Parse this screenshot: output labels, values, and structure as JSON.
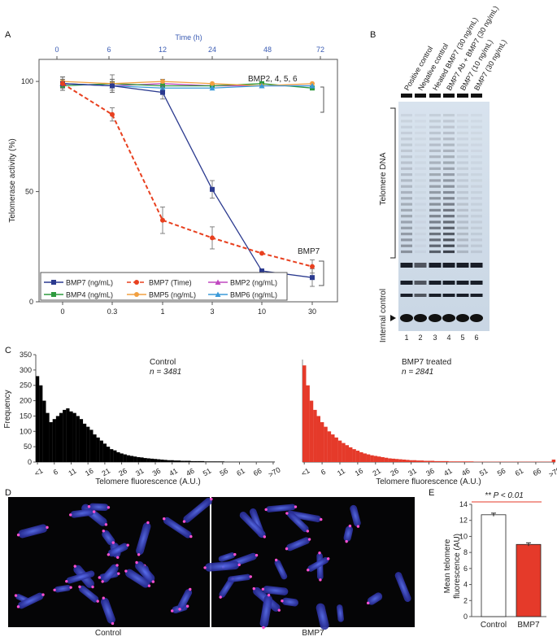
{
  "panels": {
    "a": "A",
    "b": "B",
    "c": "C",
    "d": "D",
    "e": "E"
  },
  "chart_data": [
    {
      "id": "panelA",
      "type": "line",
      "ylabel": "Telomerase activity (%)",
      "xlabel_top": "Time (h)",
      "x_categories": [
        "0",
        "0.3",
        "1",
        "3",
        "10",
        "30"
      ],
      "x_top_categories": [
        "0",
        "6",
        "12",
        "24",
        "48",
        "72"
      ],
      "yticks": [
        0,
        50,
        100
      ],
      "ylim": [
        0,
        110
      ],
      "series": [
        {
          "name": "BMP7 (ng/mL)",
          "color": "#2b3a8f",
          "dash": "",
          "marker": "square",
          "values": [
            99,
            98,
            95,
            51,
            14,
            11
          ],
          "err": [
            3,
            3,
            3,
            4,
            0,
            4
          ]
        },
        {
          "name": "BMP7 (Time)",
          "color": "#e8401f",
          "dash": "5,3",
          "marker": "circle",
          "values": [
            99,
            85,
            37,
            29,
            22,
            16
          ],
          "err": [
            3,
            3,
            6,
            5,
            0,
            3
          ]
        },
        {
          "name": "BMP2 (ng/mL)",
          "color": "#c048c0",
          "dash": "",
          "marker": "triangle",
          "values": [
            99,
            98,
            99,
            98,
            98,
            98
          ],
          "err": [
            2,
            3,
            2,
            0,
            0,
            0
          ]
        },
        {
          "name": "BMP4 (ng/mL)",
          "color": "#2e9a3e",
          "dash": "",
          "marker": "square",
          "values": [
            98,
            99,
            98,
            98,
            99,
            97
          ],
          "err": [
            2,
            4,
            0,
            0,
            0,
            0
          ]
        },
        {
          "name": "BMP5 (ng/mL)",
          "color": "#f2a040",
          "dash": "",
          "marker": "circle",
          "values": [
            100,
            99,
            100,
            99,
            98,
            99
          ],
          "err": [
            2,
            2,
            0,
            0,
            0,
            0
          ]
        },
        {
          "name": "BMP6 (ng/mL)",
          "color": "#3b9ad9",
          "dash": "",
          "marker": "triangle",
          "values": [
            99,
            98,
            97,
            97,
            98,
            98
          ],
          "err": [
            2,
            2,
            0,
            0,
            0,
            0
          ]
        }
      ],
      "annotations": [
        "BMP2, 4, 5, 6",
        "BMP7"
      ]
    },
    {
      "id": "panelC_control",
      "type": "bar",
      "title": "Control",
      "n_label": "n = 3481",
      "xlabel": "Telomere fluorescence (A.U.)",
      "ylabel": "Frequency",
      "color": "#000000",
      "ylim": [
        0,
        350
      ],
      "yticks": [
        0,
        50,
        100,
        150,
        200,
        250,
        300,
        350
      ],
      "xtick_labels": [
        "<1",
        "6",
        "11",
        "16",
        "21",
        "26",
        "31",
        "36",
        "41",
        "46",
        "51",
        "56",
        "61",
        "66",
        ">70"
      ],
      "values": [
        280,
        250,
        200,
        160,
        130,
        140,
        150,
        160,
        170,
        175,
        165,
        160,
        150,
        140,
        125,
        115,
        105,
        90,
        80,
        70,
        60,
        50,
        42,
        38,
        32,
        28,
        25,
        22,
        20,
        18,
        16,
        15,
        13,
        12,
        11,
        10,
        9,
        8,
        7,
        6,
        6,
        5,
        5,
        4,
        4,
        4,
        3,
        3,
        3,
        3,
        2,
        2,
        2,
        2,
        2,
        2,
        1,
        1,
        1,
        1,
        1,
        1,
        1,
        1,
        1,
        1,
        1,
        1,
        1,
        1,
        1
      ]
    },
    {
      "id": "panelC_bmp7",
      "type": "bar",
      "title": "BMP7 treated",
      "n_label": "n = 2841",
      "xlabel": "Telomere fluorescence (A.U.)",
      "color": "#e53a2a",
      "ylim": [
        0,
        350
      ],
      "xtick_labels": [
        "<1",
        "6",
        "11",
        "16",
        "21",
        "26",
        "31",
        "36",
        "41",
        "46",
        "51",
        "56",
        "61",
        "66",
        ">70"
      ],
      "values": [
        315,
        250,
        200,
        170,
        150,
        130,
        115,
        100,
        90,
        80,
        70,
        62,
        55,
        48,
        42,
        37,
        32,
        28,
        25,
        22,
        20,
        18,
        16,
        14,
        12,
        11,
        10,
        9,
        8,
        7,
        6,
        6,
        5,
        5,
        4,
        4,
        4,
        3,
        3,
        3,
        3,
        2,
        2,
        2,
        2,
        2,
        2,
        2,
        1,
        1,
        1,
        1,
        1,
        1,
        1,
        1,
        1,
        1,
        1,
        1,
        1,
        1,
        1,
        1,
        1,
        1,
        1,
        1,
        1,
        1,
        8
      ]
    },
    {
      "id": "panelE",
      "type": "bar",
      "categories": [
        "Control",
        "BMP7"
      ],
      "values": [
        12.7,
        9.0
      ],
      "err": [
        0.2,
        0.2
      ],
      "colors": [
        "#ffffff",
        "#e53a2a"
      ],
      "ylabel_line1": "Mean telomere",
      "ylabel_line2": "fluorescence (AU)",
      "ylim": [
        0,
        14
      ],
      "yticks": [
        0,
        2,
        4,
        6,
        8,
        10,
        12,
        14
      ],
      "significance": "** P < 0.01"
    }
  ],
  "gel": {
    "lane_labels": [
      "Positive control",
      "Negative control",
      "Heated BMP7 (30 ng/mL)",
      "BMP7 Ab + BMP7 (30 ng/mL)",
      "BMP7 (10 ng/mL)",
      "BMP7 (30 ng/mL)"
    ],
    "lane_numbers": [
      "1",
      "2",
      "3",
      "4",
      "5",
      "6"
    ],
    "telomere_dna_label": "Telomere DNA",
    "internal_control_label": "Internal control"
  },
  "micrographs": {
    "left_label": "Control",
    "right_label": "BMP7"
  }
}
